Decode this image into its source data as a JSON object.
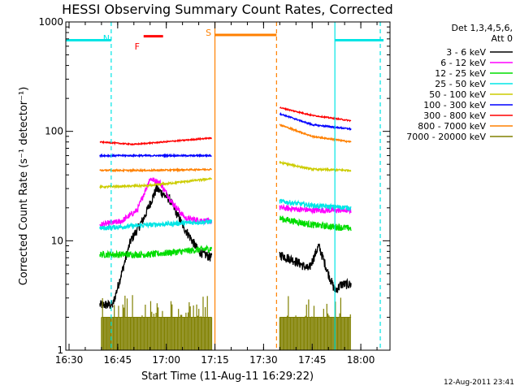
{
  "chart_data": {
    "type": "line",
    "title": "HESSI Observing Summary Count Rates, Corrected",
    "xlabel": "Start Time (11-Aug-11 16:29:22)",
    "ylabel": "Corrected Count Rate (s⁻¹ detector⁻¹)",
    "y_scale": "log",
    "ylim": [
      1,
      1000
    ],
    "xlim": [
      "16:29",
      "18:09"
    ],
    "x_ticks": [
      "16:30",
      "16:45",
      "17:00",
      "17:15",
      "17:30",
      "17:45",
      "18:00"
    ],
    "y_ticks": [
      {
        "value": 1,
        "label": "1"
      },
      {
        "value": 10,
        "label": "10"
      },
      {
        "value": 100,
        "label": "100"
      },
      {
        "value": 1000,
        "label": "1000"
      }
    ],
    "legend": {
      "position": "right",
      "header": [
        "Det 1,3,4,5,6,",
        "Att 0"
      ]
    },
    "series": [
      {
        "name": "3 - 6 keV",
        "color": "#000000",
        "noise": 0.1,
        "segments": [
          {
            "x": [
              "16:39:30",
              "16:43:30"
            ],
            "y": [
              2.6,
              2.6
            ]
          },
          {
            "x": [
              "16:43:30",
              "16:49",
              "16:53",
              "16:57",
              "17:01",
              "17:05",
              "17:10",
              "17:14"
            ],
            "y": [
              2.6,
              10,
              16,
              30,
              24,
              14,
              8,
              7
            ]
          },
          {
            "x": [
              "17:35",
              "17:40",
              "17:44",
              "17:47",
              "17:50",
              "17:52",
              "17:54",
              "17:57"
            ],
            "y": [
              7.5,
              6.5,
              5.5,
              9,
              5,
              3.5,
              4,
              4
            ]
          }
        ]
      },
      {
        "name": "6 - 12 keV",
        "color": "#ff00ff",
        "noise": 0.06,
        "segments": [
          {
            "x": [
              "16:39:30",
              "16:46",
              "16:51",
              "16:55",
              "16:58",
              "17:02",
              "17:06",
              "17:14"
            ],
            "y": [
              14,
              15,
              19,
              37,
              34,
              22,
              16,
              15
            ]
          },
          {
            "x": [
              "17:35",
              "17:45",
              "17:57"
            ],
            "y": [
              20,
              19,
              19
            ]
          }
        ]
      },
      {
        "name": "12 - 25 keV",
        "color": "#00dd00",
        "noise": 0.07,
        "segments": [
          {
            "x": [
              "16:39:30",
              "16:55",
              "17:14"
            ],
            "y": [
              7.5,
              7.5,
              8.5
            ]
          },
          {
            "x": [
              "17:35",
              "17:45",
              "17:57"
            ],
            "y": [
              16,
              14,
              13
            ]
          }
        ]
      },
      {
        "name": "25 - 50 keV",
        "color": "#00e5e5",
        "noise": 0.05,
        "segments": [
          {
            "x": [
              "16:39:30",
              "16:55",
              "17:14"
            ],
            "y": [
              13,
              14,
              15
            ]
          },
          {
            "x": [
              "17:35",
              "17:45",
              "17:57"
            ],
            "y": [
              23,
              21,
              20
            ]
          }
        ]
      },
      {
        "name": "50 - 100 keV",
        "color": "#cccc00",
        "noise": 0.02,
        "segments": [
          {
            "x": [
              "16:39:30",
              "16:55",
              "17:14"
            ],
            "y": [
              31,
              32,
              37
            ]
          },
          {
            "x": [
              "17:35",
              "17:45",
              "17:57"
            ],
            "y": [
              52,
              45,
              44
            ]
          }
        ]
      },
      {
        "name": "100 - 300 keV",
        "color": "#0000ff",
        "noise": 0.015,
        "segments": [
          {
            "x": [
              "16:39:30",
              "16:55",
              "17:14"
            ],
            "y": [
              60,
              60,
              60
            ]
          },
          {
            "x": [
              "17:35",
              "17:45",
              "17:57"
            ],
            "y": [
              145,
              115,
              105
            ]
          }
        ]
      },
      {
        "name": "300 - 800 keV",
        "color": "#ff0000",
        "noise": 0.012,
        "segments": [
          {
            "x": [
              "16:39:30",
              "16:50",
              "17:14"
            ],
            "y": [
              80,
              76,
              87
            ]
          },
          {
            "x": [
              "17:35",
              "17:45",
              "17:57"
            ],
            "y": [
              165,
              140,
              125
            ]
          }
        ]
      },
      {
        "name": "800 - 7000 keV",
        "color": "#ff8000",
        "noise": 0.015,
        "segments": [
          {
            "x": [
              "16:39:30",
              "16:55",
              "17:14"
            ],
            "y": [
              44,
              44,
              45
            ]
          },
          {
            "x": [
              "17:35",
              "17:45",
              "17:57"
            ],
            "y": [
              115,
              90,
              80
            ]
          }
        ]
      },
      {
        "name": "7000 - 20000 keV",
        "color": "#808000",
        "kind": "spikes",
        "floor": 1,
        "segments": [
          {
            "x": [
              "16:40",
              "17:14"
            ],
            "y": [
              2.0,
              2.0
            ]
          },
          {
            "x": [
              "17:35",
              "17:57"
            ],
            "y": [
              2.0,
              2.0
            ]
          }
        ]
      }
    ],
    "annotations": {
      "markers": [
        {
          "text": "N",
          "color": "#00e5e5",
          "x": "16:41:30"
        },
        {
          "text": "F",
          "color": "#ff0000",
          "x": "16:51"
        },
        {
          "text": "S",
          "color": "#ff8000",
          "x": "17:13"
        }
      ],
      "flare_bar": {
        "color": "#ff0000",
        "x": [
          "16:53",
          "16:59"
        ],
        "y": 740
      },
      "night_bars": {
        "color": "#00e5e5",
        "y": 680,
        "spans": [
          [
            "16:29",
            "16:43"
          ],
          [
            "17:52",
            "18:07"
          ]
        ]
      },
      "saa_bar": {
        "color": "#ff8000",
        "y": 760,
        "x": [
          "17:15",
          "17:34"
        ]
      },
      "vlines": [
        {
          "x": "16:43",
          "color": "#00e5e5",
          "dash": true
        },
        {
          "x": "17:15",
          "color": "#ff8000",
          "dash": false
        },
        {
          "x": "17:34",
          "color": "#ff8000",
          "dash": true
        },
        {
          "x": "17:52",
          "color": "#00e5e5",
          "dash": false
        },
        {
          "x": "18:06",
          "color": "#00e5e5",
          "dash": true
        }
      ]
    },
    "grid": false
  },
  "footer": {
    "timestamp": "12-Aug-2011 23:41"
  }
}
